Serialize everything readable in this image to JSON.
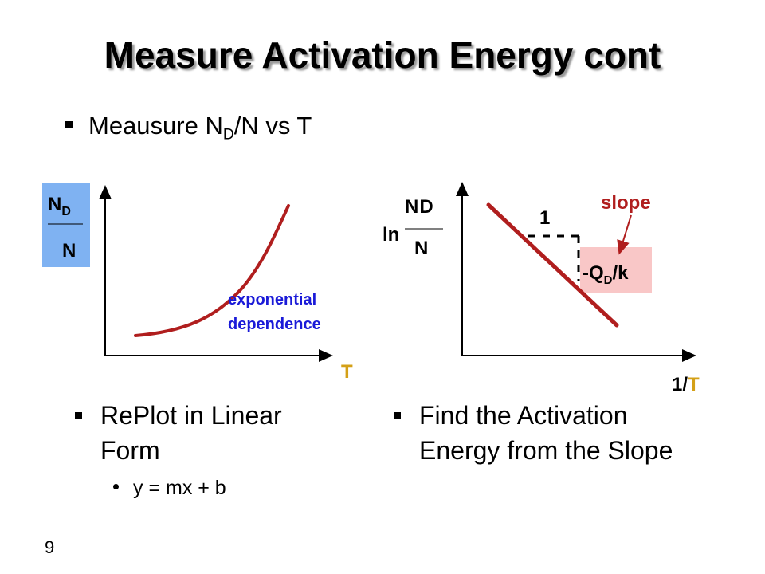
{
  "slide": {
    "title": "Measure Activation Energy cont",
    "bullet": {
      "prefix": "Meausure N",
      "sub": "D",
      "suffix": "/N vs T"
    },
    "left_point": "RePlot in Linear Form",
    "left_subpoint": "y = mx + b",
    "right_point": "Find the Activation Energy from the Slope",
    "page_number": "9"
  },
  "left_graph": {
    "y_label_top": "N",
    "y_label_top_sub": "D",
    "y_label_bottom": "N",
    "y_label_box_color": "#7fb2f2",
    "x_label": "T",
    "curve_annotation_line1": "exponential",
    "curve_annotation_line2": "dependence",
    "curve_color": "#b01e1e",
    "annotation_color": "#1a1ad8",
    "x_label_color": "#d4a017"
  },
  "right_graph": {
    "y_label_ln": "ln",
    "y_label_top": "N",
    "y_label_top_sub": "D",
    "y_label_bottom": "N",
    "x_label_prefix": "1/",
    "x_label_T": "T",
    "run_label": "1",
    "slope_label": "slope",
    "rise_label_prefix": "-Q",
    "rise_label_sub": "D",
    "rise_label_suffix": "/k",
    "line_color": "#b01e1e",
    "slope_box_color": "#f9c7c7"
  }
}
